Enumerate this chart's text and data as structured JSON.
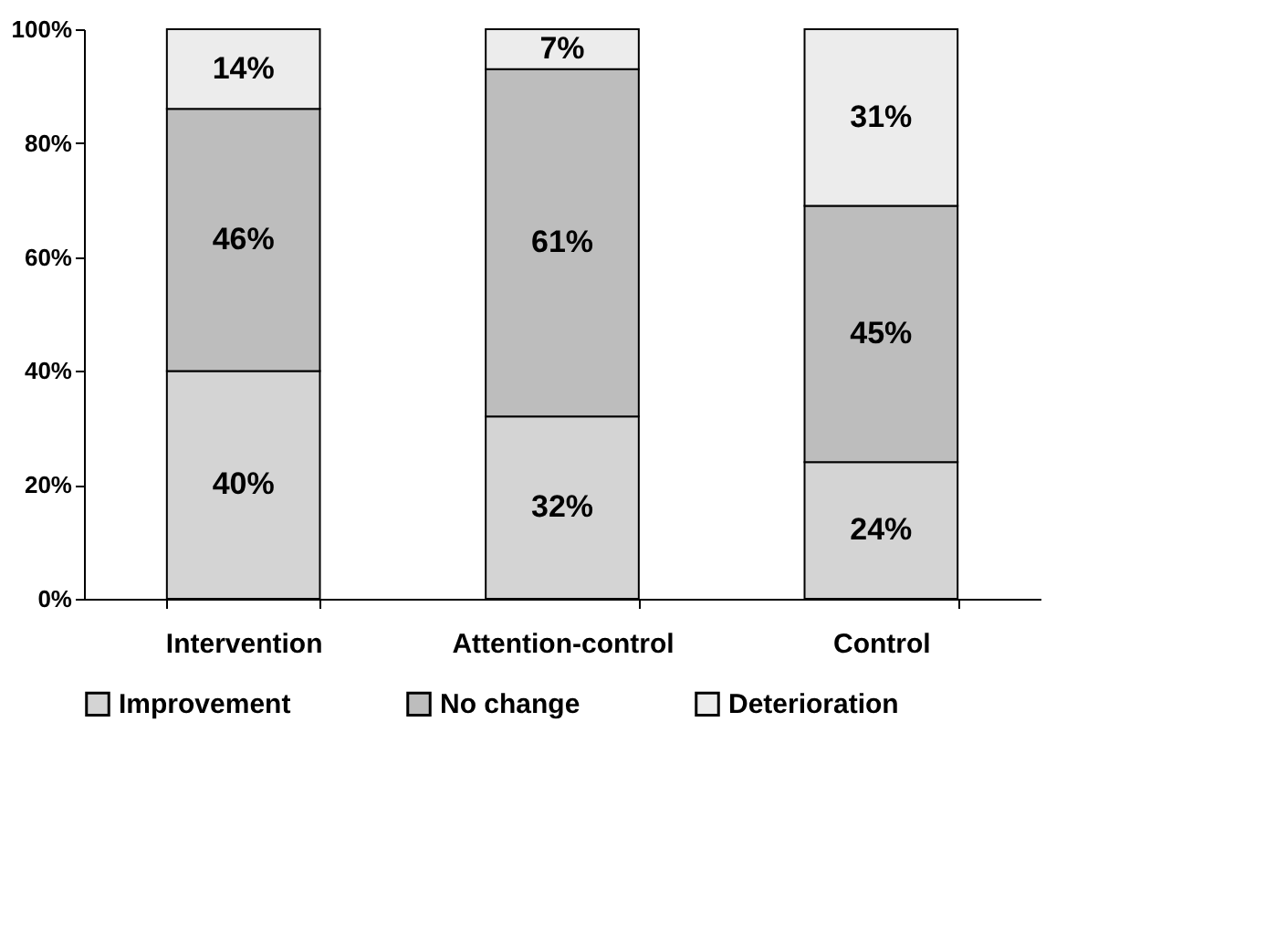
{
  "chart_data": {
    "type": "bar",
    "stacked": true,
    "categories": [
      "Intervention",
      "Attention-control",
      "Control"
    ],
    "series": [
      {
        "name": "Improvement",
        "color": "#d4d4d4",
        "values": [
          40,
          32,
          24
        ],
        "value_labels": [
          "40%",
          "32%",
          "24%"
        ]
      },
      {
        "name": "No change",
        "color": "#bdbdbd",
        "values": [
          46,
          61,
          45
        ],
        "value_labels": [
          "46%",
          "61%",
          "45%"
        ]
      },
      {
        "name": "Deterioration",
        "color": "#ececec",
        "values": [
          14,
          7,
          31
        ],
        "value_labels": [
          "14%",
          "7%",
          "31%"
        ]
      }
    ],
    "ylim": [
      0,
      100
    ],
    "yticks": [
      {
        "value": 0,
        "label": "0%"
      },
      {
        "value": 20,
        "label": "20%"
      },
      {
        "value": 40,
        "label": "40%"
      },
      {
        "value": 60,
        "label": "60%"
      },
      {
        "value": 80,
        "label": "80%"
      },
      {
        "value": 100,
        "label": "100%"
      }
    ],
    "grid": false,
    "legend": "bottom"
  }
}
